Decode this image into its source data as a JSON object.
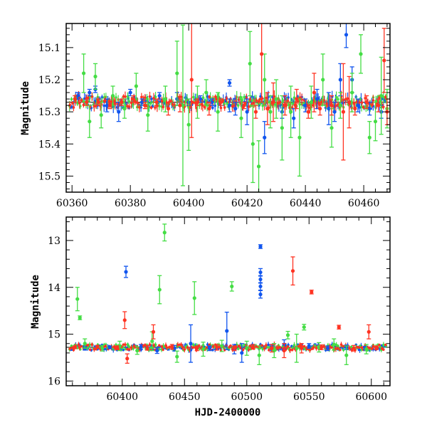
{
  "colors": {
    "blue": "#1155ee",
    "green": "#44dd44",
    "red": "#ff3322",
    "axis": "#000000",
    "reference_line": "#000000"
  },
  "chart_data": [
    {
      "type": "scatter",
      "panel": "top",
      "title": "",
      "xlabel": "",
      "ylabel": "Magnitude",
      "y_inverted": true,
      "xlim": [
        60358,
        60469
      ],
      "ylim": [
        15.55,
        15.025
      ],
      "x_ticks": [
        60360,
        60380,
        60400,
        60420,
        60440,
        60460
      ],
      "y_ticks": [
        15.1,
        15.2,
        15.3,
        15.4,
        15.5
      ],
      "reference_line_y": 15.27,
      "error_bars": true,
      "series": [
        {
          "color_key": "blue",
          "points": [
            [
              60362,
              15.25,
              0.01
            ],
            [
              60366,
              15.24,
              0.01
            ],
            [
              60368,
              15.23,
              0.01
            ],
            [
              60372,
              15.28,
              0.02
            ],
            [
              60376,
              15.3,
              0.03
            ],
            [
              60380,
              15.24,
              0.01
            ],
            [
              60384,
              15.27,
              0.01
            ],
            [
              60390,
              15.25,
              0.01
            ],
            [
              60396,
              15.26,
              0.02
            ],
            [
              60400,
              15.27,
              0.01
            ],
            [
              60404,
              15.26,
              0.01
            ],
            [
              60408,
              15.27,
              0.01
            ],
            [
              60414,
              15.21,
              0.01
            ],
            [
              60414,
              15.28,
              0.02
            ],
            [
              60416,
              15.29,
              0.02
            ],
            [
              60420,
              15.3,
              0.04
            ],
            [
              60426,
              15.38,
              0.05
            ],
            [
              60432,
              15.3,
              0.02
            ],
            [
              60436,
              15.32,
              0.03
            ],
            [
              60440,
              15.28,
              0.02
            ],
            [
              60444,
              15.26,
              0.03
            ],
            [
              60448,
              15.29,
              0.05
            ],
            [
              60450,
              15.3,
              0.03
            ],
            [
              60452,
              15.2,
              0.05
            ],
            [
              60454,
              15.06,
              0.04
            ],
            [
              60456,
              15.2,
              0.04
            ],
            [
              60458,
              15.28,
              0.02
            ],
            [
              60462,
              15.29,
              0.02
            ],
            [
              60466,
              15.3,
              0.02
            ]
          ]
        },
        {
          "color_key": "green",
          "points": [
            [
              60364,
              15.18,
              0.06
            ],
            [
              60366,
              15.33,
              0.05
            ],
            [
              60368,
              15.19,
              0.04
            ],
            [
              60370,
              15.31,
              0.04
            ],
            [
              60374,
              15.25,
              0.03
            ],
            [
              60378,
              15.29,
              0.03
            ],
            [
              60382,
              15.22,
              0.04
            ],
            [
              60386,
              15.31,
              0.05
            ],
            [
              60392,
              15.26,
              0.04
            ],
            [
              60396,
              15.18,
              0.1
            ],
            [
              60398,
              15.28,
              0.25
            ],
            [
              60400,
              15.34,
              0.08
            ],
            [
              60403,
              15.27,
              0.05
            ],
            [
              60406,
              15.24,
              0.04
            ],
            [
              60410,
              15.3,
              0.06
            ],
            [
              60418,
              15.32,
              0.06
            ],
            [
              60421,
              15.15,
              0.1
            ],
            [
              60422,
              15.4,
              0.12
            ],
            [
              60424,
              15.47,
              0.08
            ],
            [
              60426,
              15.2,
              0.08
            ],
            [
              60428,
              15.3,
              0.05
            ],
            [
              60430,
              15.26,
              0.06
            ],
            [
              60432,
              15.35,
              0.1
            ],
            [
              60435,
              15.3,
              0.08
            ],
            [
              60438,
              15.38,
              0.12
            ],
            [
              60442,
              15.27,
              0.05
            ],
            [
              60446,
              15.2,
              0.08
            ],
            [
              60449,
              15.35,
              0.06
            ],
            [
              60452,
              15.28,
              0.04
            ],
            [
              60456,
              15.24,
              0.06
            ],
            [
              60459,
              15.12,
              0.06
            ],
            [
              60462,
              15.38,
              0.05
            ],
            [
              60464,
              15.33,
              0.06
            ],
            [
              60466,
              15.25,
              0.12
            ],
            [
              60468,
              15.29,
              0.06
            ]
          ]
        },
        {
          "color_key": "red",
          "points": [
            [
              60361,
              15.26,
              0.01
            ],
            [
              60365,
              15.27,
              0.01
            ],
            [
              60369,
              15.27,
              0.01
            ],
            [
              60373,
              15.28,
              0.01
            ],
            [
              60377,
              15.27,
              0.01
            ],
            [
              60381,
              15.26,
              0.01
            ],
            [
              60385,
              15.28,
              0.01
            ],
            [
              60389,
              15.27,
              0.01
            ],
            [
              60393,
              15.29,
              0.02
            ],
            [
              60397,
              15.28,
              0.02
            ],
            [
              60401,
              15.2,
              0.18
            ],
            [
              60403,
              15.27,
              0.01
            ],
            [
              60407,
              15.29,
              0.02
            ],
            [
              60411,
              15.27,
              0.01
            ],
            [
              60419,
              15.28,
              0.01
            ],
            [
              60423,
              15.3,
              0.02
            ],
            [
              60425,
              15.12,
              0.15
            ],
            [
              60427,
              15.29,
              0.05
            ],
            [
              60429,
              15.27,
              0.06
            ],
            [
              60433,
              15.28,
              0.03
            ],
            [
              60437,
              15.26,
              0.03
            ],
            [
              60441,
              15.3,
              0.02
            ],
            [
              60443,
              15.24,
              0.06
            ],
            [
              60445,
              15.29,
              0.02
            ],
            [
              60449,
              15.28,
              0.03
            ],
            [
              60453,
              15.3,
              0.15
            ],
            [
              60455,
              15.27,
              0.08
            ],
            [
              60457,
              15.29,
              0.02
            ],
            [
              60461,
              15.27,
              0.02
            ],
            [
              60465,
              15.28,
              0.02
            ],
            [
              60467,
              15.14,
              0.1
            ],
            [
              60468,
              15.3,
              0.04
            ]
          ]
        }
      ]
    },
    {
      "type": "scatter",
      "panel": "bottom",
      "title": "",
      "xlabel": "HJD-2400000",
      "ylabel": "Magnitude",
      "y_inverted": true,
      "xlim": [
        60355,
        60615
      ],
      "ylim": [
        16.1,
        12.5
      ],
      "x_ticks": [
        60400,
        60450,
        60500,
        60550,
        60600
      ],
      "y_ticks": [
        13,
        14,
        15,
        16
      ],
      "reference_line_y": 15.28,
      "error_bars": true,
      "series": [
        {
          "color_key": "blue",
          "points": [
            [
              60370,
              15.3,
              0.04
            ],
            [
              60390,
              15.28,
              0.03
            ],
            [
              60403,
              13.67,
              0.12
            ],
            [
              60415,
              15.27,
              0.05
            ],
            [
              60428,
              15.35,
              0.06
            ],
            [
              60442,
              15.3,
              0.06
            ],
            [
              60455,
              15.2,
              0.4
            ],
            [
              60470,
              15.3,
              0.05
            ],
            [
              60484,
              14.93,
              0.4
            ],
            [
              60490,
              15.32,
              0.1
            ],
            [
              60496,
              15.4,
              0.2
            ],
            [
              60511,
              13.13,
              0.04
            ],
            [
              60511,
              13.68,
              0.08
            ],
            [
              60511,
              13.83,
              0.08
            ],
            [
              60511,
              13.98,
              0.08
            ],
            [
              60511,
              14.15,
              0.08
            ],
            [
              60520,
              15.3,
              0.05
            ],
            [
              60530,
              15.22,
              0.1
            ],
            [
              60550,
              15.25,
              0.05
            ],
            [
              60565,
              15.3,
              0.05
            ],
            [
              60580,
              15.28,
              0.05
            ],
            [
              60595,
              15.3,
              0.04
            ]
          ]
        },
        {
          "color_key": "green",
          "points": [
            [
              60364,
              14.25,
              0.25
            ],
            [
              60366,
              14.65,
              0.04
            ],
            [
              60370,
              15.2,
              0.1
            ],
            [
              60384,
              15.3,
              0.06
            ],
            [
              60398,
              15.25,
              0.1
            ],
            [
              60412,
              15.35,
              0.08
            ],
            [
              60424,
              15.15,
              0.2
            ],
            [
              60430,
              14.05,
              0.3
            ],
            [
              60434,
              12.83,
              0.18
            ],
            [
              60444,
              15.48,
              0.12
            ],
            [
              60458,
              14.23,
              0.35
            ],
            [
              60465,
              15.32,
              0.15
            ],
            [
              60480,
              15.25,
              0.12
            ],
            [
              60488,
              13.98,
              0.1
            ],
            [
              60500,
              15.3,
              0.15
            ],
            [
              60510,
              15.45,
              0.2
            ],
            [
              60522,
              15.35,
              0.15
            ],
            [
              60533,
              15.02,
              0.08
            ],
            [
              60540,
              15.3,
              0.3
            ],
            [
              60546,
              14.85,
              0.06
            ],
            [
              60558,
              15.28,
              0.1
            ],
            [
              60570,
              15.22,
              0.12
            ],
            [
              60580,
              15.45,
              0.2
            ],
            [
              60596,
              15.32,
              0.1
            ]
          ]
        },
        {
          "color_key": "red",
          "points": [
            [
              60362,
              15.28,
              0.03
            ],
            [
              60380,
              15.27,
              0.03
            ],
            [
              60396,
              15.29,
              0.04
            ],
            [
              60402,
              14.7,
              0.18
            ],
            [
              60404,
              15.52,
              0.1
            ],
            [
              60420,
              15.29,
              0.05
            ],
            [
              60425,
              14.95,
              0.15
            ],
            [
              60440,
              15.27,
              0.05
            ],
            [
              60460,
              15.3,
              0.05
            ],
            [
              60476,
              15.28,
              0.06
            ],
            [
              60490,
              15.3,
              0.05
            ],
            [
              60505,
              15.27,
              0.05
            ],
            [
              60520,
              15.3,
              0.08
            ],
            [
              60530,
              15.35,
              0.15
            ],
            [
              60537,
              13.65,
              0.3
            ],
            [
              60544,
              15.3,
              0.1
            ],
            [
              60552,
              14.1,
              0.04
            ],
            [
              60560,
              15.28,
              0.05
            ],
            [
              60574,
              14.85,
              0.04
            ],
            [
              60586,
              15.3,
              0.06
            ],
            [
              60598,
              14.95,
              0.15
            ],
            [
              60604,
              15.29,
              0.04
            ]
          ]
        }
      ]
    }
  ]
}
